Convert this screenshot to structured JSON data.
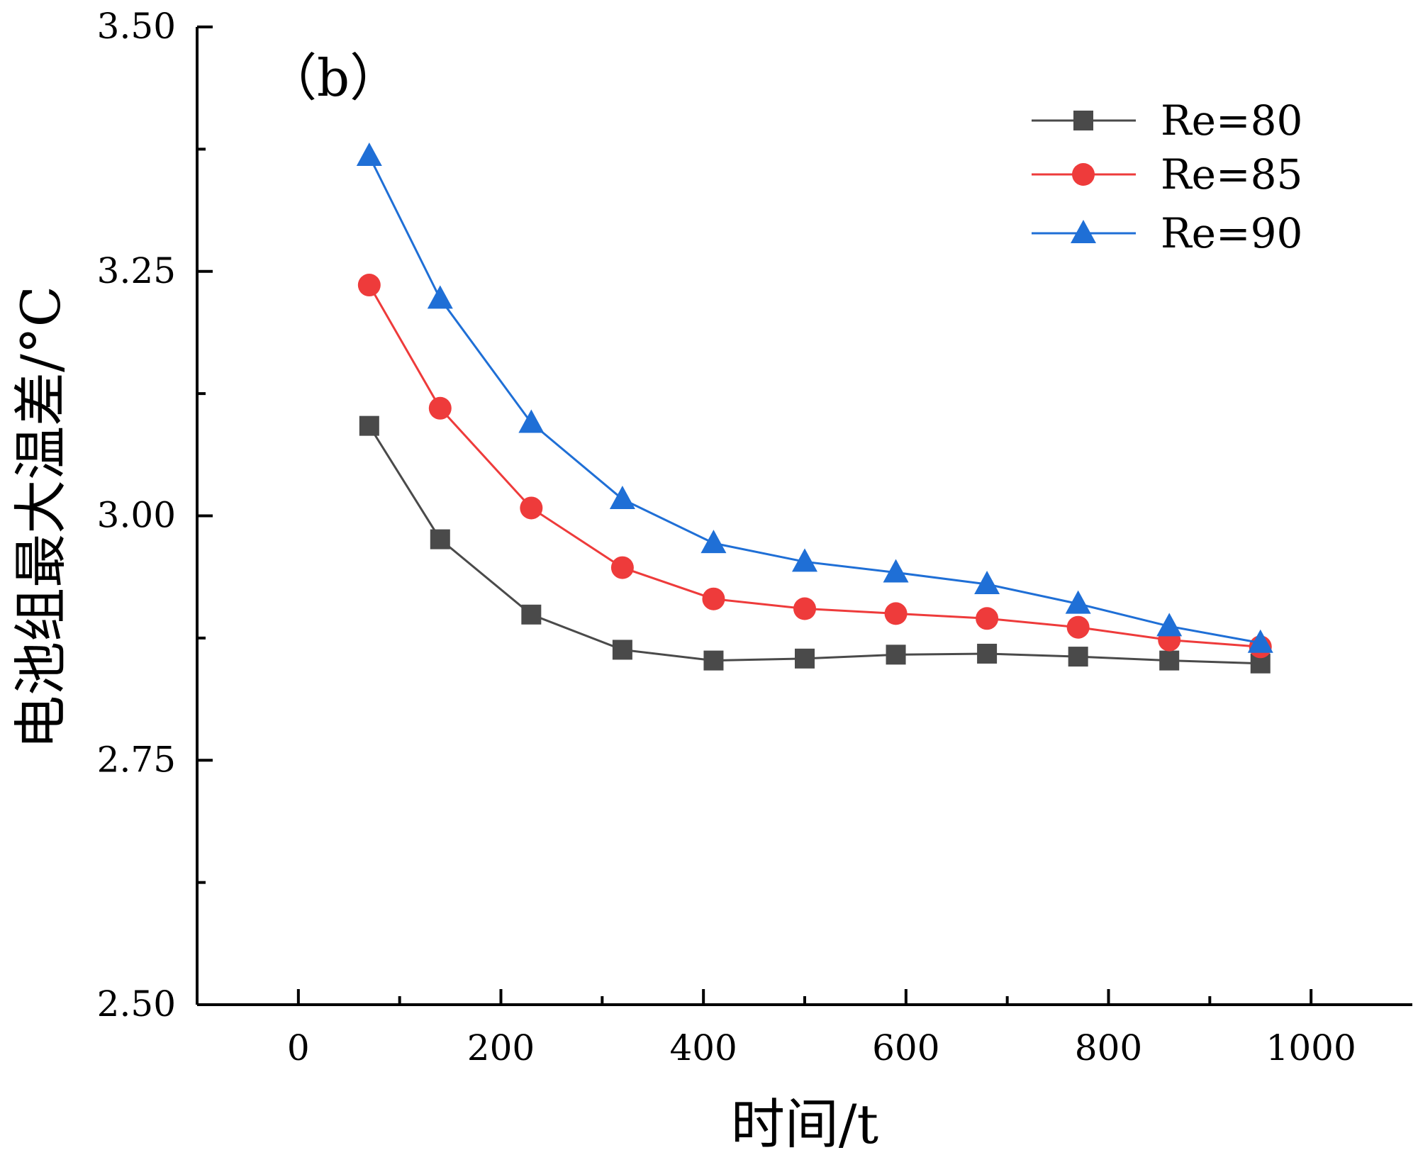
{
  "chart_data": {
    "type": "line",
    "panel_label": "（b）",
    "xlabel": "时间/t",
    "ylabel": "电池组最大温差/°C",
    "xlim": [
      -100,
      1100
    ],
    "ylim": [
      2.5,
      3.5
    ],
    "xticks": [
      0,
      200,
      400,
      600,
      800,
      1000
    ],
    "xtick_labels": [
      "0",
      "200",
      "400",
      "600",
      "800",
      "1000"
    ],
    "xminor": [
      100,
      300,
      500,
      700,
      900
    ],
    "yticks": [
      2.5,
      2.75,
      3.0,
      3.25,
      3.5
    ],
    "ytick_labels": [
      "2.50",
      "2.75",
      "3.00",
      "3.25",
      "3.50"
    ],
    "yminor": [
      2.625,
      2.875,
      3.125,
      3.375
    ],
    "legend_position": "top-right",
    "grid": false,
    "x": [
      70,
      140,
      230,
      320,
      410,
      500,
      590,
      680,
      770,
      860,
      950
    ],
    "series": [
      {
        "name": "Re=80",
        "color": "#4a4a4a",
        "marker": "square",
        "values": [
          3.092,
          2.976,
          2.899,
          2.863,
          2.852,
          2.854,
          2.858,
          2.859,
          2.856,
          2.852,
          2.849
        ]
      },
      {
        "name": "Re=85",
        "color": "#ee3b3b",
        "marker": "circle",
        "values": [
          3.236,
          3.11,
          3.008,
          2.947,
          2.915,
          2.905,
          2.9,
          2.895,
          2.886,
          2.873,
          2.866
        ]
      },
      {
        "name": "Re=90",
        "color": "#1f6fd6",
        "marker": "triangle",
        "values": [
          3.368,
          3.222,
          3.095,
          3.017,
          2.972,
          2.953,
          2.942,
          2.93,
          2.91,
          2.887,
          2.87
        ]
      }
    ]
  }
}
